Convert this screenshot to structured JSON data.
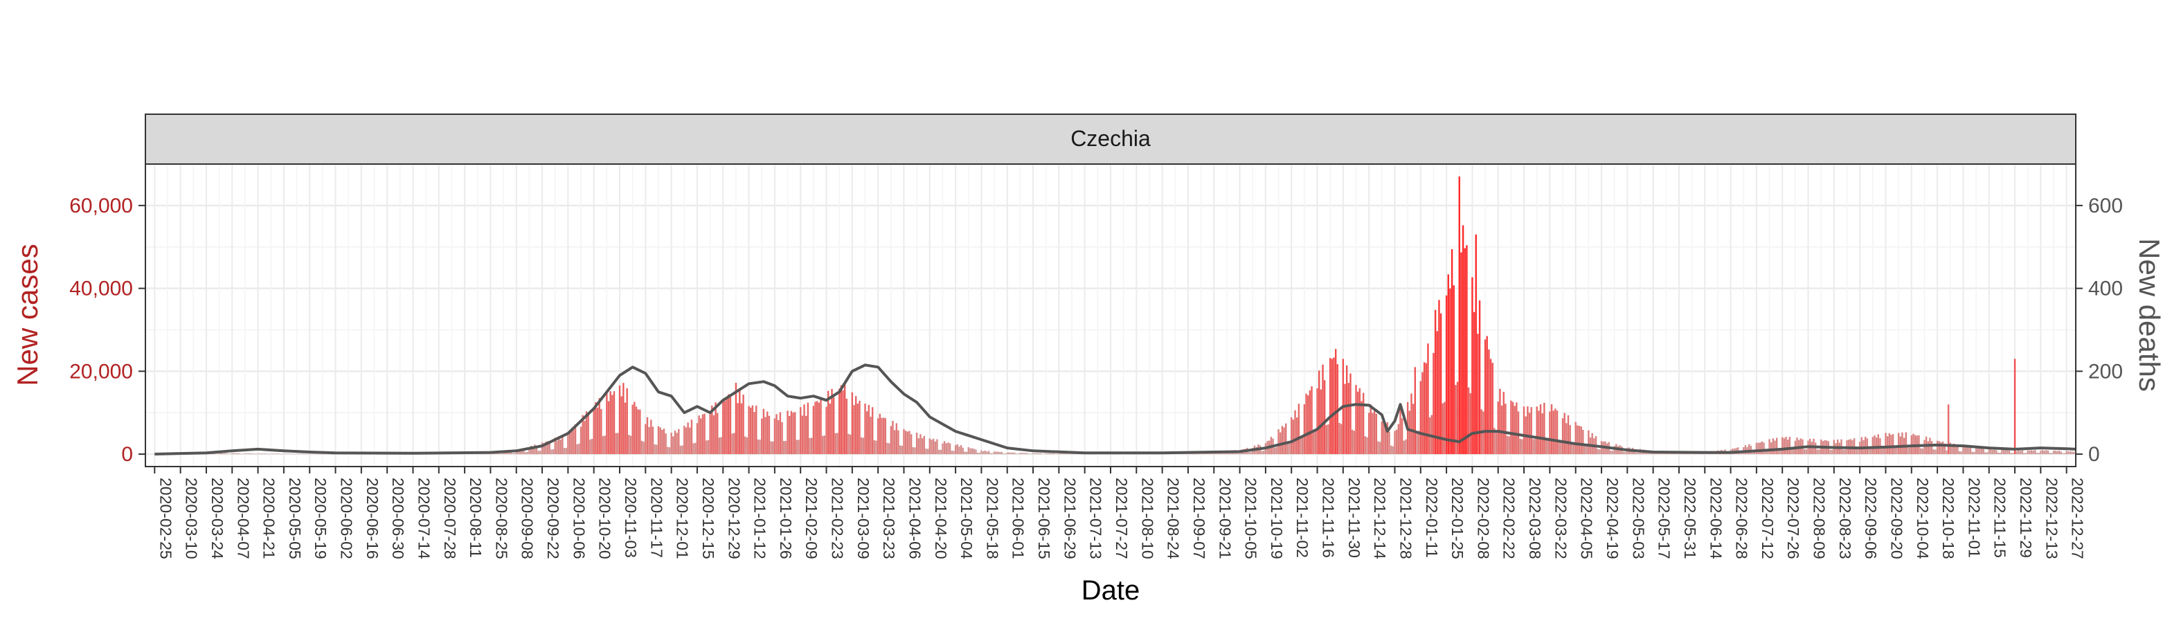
{
  "chart_data": {
    "type": "bar",
    "facet_title": "Czechia",
    "xlabel": "Date",
    "ylabel_left": "New cases",
    "ylabel_right": "New deaths",
    "xlim": [
      "2020-02-20",
      "2023-01-01"
    ],
    "ylim_left": [
      -3000,
      70000
    ],
    "ylim_right": [
      -30,
      700
    ],
    "left_ticks": [
      0,
      20000,
      40000,
      60000
    ],
    "left_tick_labels": [
      "0",
      "20,000",
      "40,000",
      "60,000"
    ],
    "right_ticks": [
      0,
      200,
      400,
      600
    ],
    "right_tick_labels": [
      "0",
      "200",
      "400",
      "600"
    ],
    "x_tick_labels": [
      "2020-02-25",
      "2020-03-10",
      "2020-03-24",
      "2020-04-07",
      "2020-04-21",
      "2020-05-05",
      "2020-05-19",
      "2020-06-02",
      "2020-06-16",
      "2020-06-30",
      "2020-07-14",
      "2020-07-28",
      "2020-08-11",
      "2020-08-25",
      "2020-09-08",
      "2020-09-22",
      "2020-10-06",
      "2020-10-20",
      "2020-11-03",
      "2020-11-17",
      "2020-12-01",
      "2020-12-15",
      "2020-12-29",
      "2021-01-12",
      "2021-01-26",
      "2021-02-09",
      "2021-02-23",
      "2021-03-09",
      "2021-03-23",
      "2021-04-06",
      "2021-04-20",
      "2021-05-04",
      "2021-05-18",
      "2021-06-01",
      "2021-06-15",
      "2021-06-29",
      "2021-07-13",
      "2021-07-27",
      "2021-08-10",
      "2021-08-24",
      "2021-09-07",
      "2021-09-21",
      "2021-10-05",
      "2021-10-19",
      "2021-11-02",
      "2021-11-16",
      "2021-11-30",
      "2021-12-14",
      "2021-12-28",
      "2022-01-11",
      "2022-01-25",
      "2022-02-08",
      "2022-02-22",
      "2022-03-08",
      "2022-03-22",
      "2022-04-05",
      "2022-04-19",
      "2022-05-03",
      "2022-05-17",
      "2022-05-31",
      "2022-06-14",
      "2022-06-28",
      "2022-07-12",
      "2022-07-26",
      "2022-08-09",
      "2022-08-23",
      "2022-09-06",
      "2022-09-20",
      "2022-10-04",
      "2022-10-18",
      "2022-11-01",
      "2022-11-15",
      "2022-11-29",
      "2022-12-13",
      "2022-12-27"
    ],
    "grid": true,
    "colors": {
      "cases_axis": "#b22222",
      "deaths_axis": "#555555",
      "deaths_line": "#555555",
      "bar_low": "#c9aaa8",
      "bar_high": "#ff2a2a",
      "strip_fill": "#d9d9d9",
      "grid": "#ebebeb"
    },
    "series": [
      {
        "name": "New cases",
        "kind": "daily bars",
        "points": [
          [
            "2020-02-25",
            0
          ],
          [
            "2020-03-25",
            300
          ],
          [
            "2020-04-20",
            120
          ],
          [
            "2020-06-01",
            60
          ],
          [
            "2020-07-10",
            150
          ],
          [
            "2020-08-20",
            250
          ],
          [
            "2020-09-08",
            800
          ],
          [
            "2020-09-22",
            2500
          ],
          [
            "2020-10-06",
            4500
          ],
          [
            "2020-10-20",
            11000
          ],
          [
            "2020-11-01",
            14500
          ],
          [
            "2020-11-05",
            15000
          ],
          [
            "2020-11-17",
            8000
          ],
          [
            "2020-12-01",
            4500
          ],
          [
            "2020-12-15",
            8000
          ],
          [
            "2020-12-29",
            12000
          ],
          [
            "2021-01-05",
            15000
          ],
          [
            "2021-01-12",
            11000
          ],
          [
            "2021-01-26",
            8500
          ],
          [
            "2021-02-09",
            10000
          ],
          [
            "2021-02-23",
            13000
          ],
          [
            "2021-03-04",
            15500
          ],
          [
            "2021-03-09",
            13000
          ],
          [
            "2021-03-23",
            9000
          ],
          [
            "2021-04-06",
            5500
          ],
          [
            "2021-04-20",
            3500
          ],
          [
            "2021-05-04",
            2200
          ],
          [
            "2021-05-18",
            800
          ],
          [
            "2021-06-01",
            400
          ],
          [
            "2021-06-15",
            200
          ],
          [
            "2021-07-13",
            200
          ],
          [
            "2021-08-10",
            220
          ],
          [
            "2021-09-07",
            350
          ],
          [
            "2021-10-05",
            900
          ],
          [
            "2021-10-19",
            2500
          ],
          [
            "2021-11-02",
            8000
          ],
          [
            "2021-11-16",
            17000
          ],
          [
            "2021-11-26",
            23000
          ],
          [
            "2021-11-30",
            20000
          ],
          [
            "2021-12-14",
            11000
          ],
          [
            "2021-12-28",
            5000
          ],
          [
            "2022-01-11",
            17000
          ],
          [
            "2022-01-20",
            32000
          ],
          [
            "2022-01-25",
            37000
          ],
          [
            "2022-02-01",
            52000
          ],
          [
            "2022-02-06",
            46000
          ],
          [
            "2022-02-08",
            38000
          ],
          [
            "2022-02-15",
            28000
          ],
          [
            "2022-02-22",
            14000
          ],
          [
            "2022-03-08",
            10000
          ],
          [
            "2022-03-22",
            11000
          ],
          [
            "2022-04-05",
            7000
          ],
          [
            "2022-04-19",
            3000
          ],
          [
            "2022-05-03",
            1500
          ],
          [
            "2022-05-17",
            700
          ],
          [
            "2022-06-14",
            500
          ],
          [
            "2022-06-28",
            1100
          ],
          [
            "2022-07-12",
            2500
          ],
          [
            "2022-07-26",
            3800
          ],
          [
            "2022-08-09",
            3300
          ],
          [
            "2022-08-23",
            3000
          ],
          [
            "2022-09-06",
            3500
          ],
          [
            "2022-09-20",
            4500
          ],
          [
            "2022-10-04",
            4600
          ],
          [
            "2022-10-18",
            3000
          ],
          [
            "2022-11-01",
            1800
          ],
          [
            "2022-11-15",
            1200
          ],
          [
            "2022-11-29",
            800
          ],
          [
            "2022-12-13",
            900
          ],
          [
            "2022-12-27",
            700
          ],
          [
            "2023-01-01",
            500
          ]
        ],
        "spikes": [
          [
            "2021-12-31",
            11000
          ],
          [
            "2022-01-08",
            21000
          ],
          [
            "2022-02-01",
            67000
          ],
          [
            "2022-02-10",
            53000
          ],
          [
            "2022-10-24",
            12000
          ],
          [
            "2022-11-29",
            23000
          ]
        ]
      },
      {
        "name": "New deaths",
        "kind": "7-day line",
        "points": [
          [
            "2020-02-25",
            0
          ],
          [
            "2020-03-24",
            3
          ],
          [
            "2020-04-07",
            8
          ],
          [
            "2020-04-21",
            12
          ],
          [
            "2020-05-05",
            8
          ],
          [
            "2020-05-19",
            5
          ],
          [
            "2020-06-02",
            3
          ],
          [
            "2020-07-14",
            2
          ],
          [
            "2020-08-25",
            4
          ],
          [
            "2020-09-08",
            8
          ],
          [
            "2020-09-22",
            20
          ],
          [
            "2020-10-06",
            50
          ],
          [
            "2020-10-20",
            110
          ],
          [
            "2020-11-03",
            190
          ],
          [
            "2020-11-10",
            210
          ],
          [
            "2020-11-17",
            195
          ],
          [
            "2020-11-24",
            150
          ],
          [
            "2020-12-01",
            140
          ],
          [
            "2020-12-08",
            100
          ],
          [
            "2020-12-15",
            115
          ],
          [
            "2020-12-22",
            100
          ],
          [
            "2020-12-29",
            130
          ],
          [
            "2021-01-12",
            170
          ],
          [
            "2021-01-20",
            175
          ],
          [
            "2021-01-26",
            165
          ],
          [
            "2021-02-02",
            140
          ],
          [
            "2021-02-09",
            135
          ],
          [
            "2021-02-16",
            140
          ],
          [
            "2021-02-23",
            130
          ],
          [
            "2021-03-02",
            150
          ],
          [
            "2021-03-09",
            200
          ],
          [
            "2021-03-16",
            215
          ],
          [
            "2021-03-23",
            210
          ],
          [
            "2021-03-30",
            175
          ],
          [
            "2021-04-06",
            145
          ],
          [
            "2021-04-13",
            125
          ],
          [
            "2021-04-20",
            90
          ],
          [
            "2021-05-04",
            55
          ],
          [
            "2021-05-18",
            35
          ],
          [
            "2021-06-01",
            15
          ],
          [
            "2021-06-15",
            8
          ],
          [
            "2021-07-13",
            3
          ],
          [
            "2021-08-24",
            3
          ],
          [
            "2021-09-21",
            5
          ],
          [
            "2021-10-05",
            6
          ],
          [
            "2021-10-19",
            15
          ],
          [
            "2021-11-02",
            30
          ],
          [
            "2021-11-16",
            60
          ],
          [
            "2021-11-23",
            90
          ],
          [
            "2021-11-30",
            115
          ],
          [
            "2021-12-07",
            120
          ],
          [
            "2021-12-14",
            118
          ],
          [
            "2021-12-21",
            95
          ],
          [
            "2021-12-24",
            55
          ],
          [
            "2021-12-28",
            80
          ],
          [
            "2021-12-31",
            120
          ],
          [
            "2022-01-04",
            60
          ],
          [
            "2022-01-11",
            50
          ],
          [
            "2022-01-25",
            35
          ],
          [
            "2022-02-01",
            30
          ],
          [
            "2022-02-08",
            50
          ],
          [
            "2022-02-15",
            55
          ],
          [
            "2022-02-22",
            55
          ],
          [
            "2022-03-08",
            45
          ],
          [
            "2022-03-22",
            35
          ],
          [
            "2022-04-05",
            25
          ],
          [
            "2022-04-19",
            18
          ],
          [
            "2022-05-03",
            10
          ],
          [
            "2022-05-17",
            5
          ],
          [
            "2022-06-14",
            4
          ],
          [
            "2022-06-28",
            4
          ],
          [
            "2022-07-12",
            8
          ],
          [
            "2022-07-26",
            12
          ],
          [
            "2022-08-09",
            18
          ],
          [
            "2022-08-23",
            16
          ],
          [
            "2022-09-06",
            15
          ],
          [
            "2022-09-20",
            17
          ],
          [
            "2022-10-04",
            20
          ],
          [
            "2022-10-18",
            22
          ],
          [
            "2022-11-01",
            20
          ],
          [
            "2022-11-15",
            15
          ],
          [
            "2022-11-29",
            12
          ],
          [
            "2022-12-13",
            15
          ],
          [
            "2022-12-27",
            13
          ],
          [
            "2023-01-01",
            12
          ]
        ]
      }
    ]
  }
}
